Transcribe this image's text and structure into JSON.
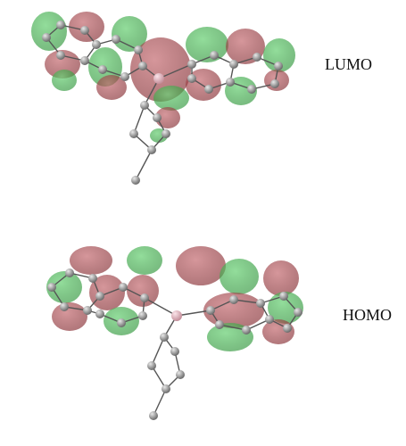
{
  "figure": {
    "panels": [
      {
        "label": "LUMO"
      },
      {
        "label": "HOMO"
      }
    ],
    "colors": {
      "background": "#ffffff",
      "positive_lobe": "#1e8c2a",
      "negative_lobe": "#8a1f25",
      "carbon_atom": "#8f8f8f",
      "boron_atom": "#d9a7b2",
      "bond": "#555555"
    }
  }
}
